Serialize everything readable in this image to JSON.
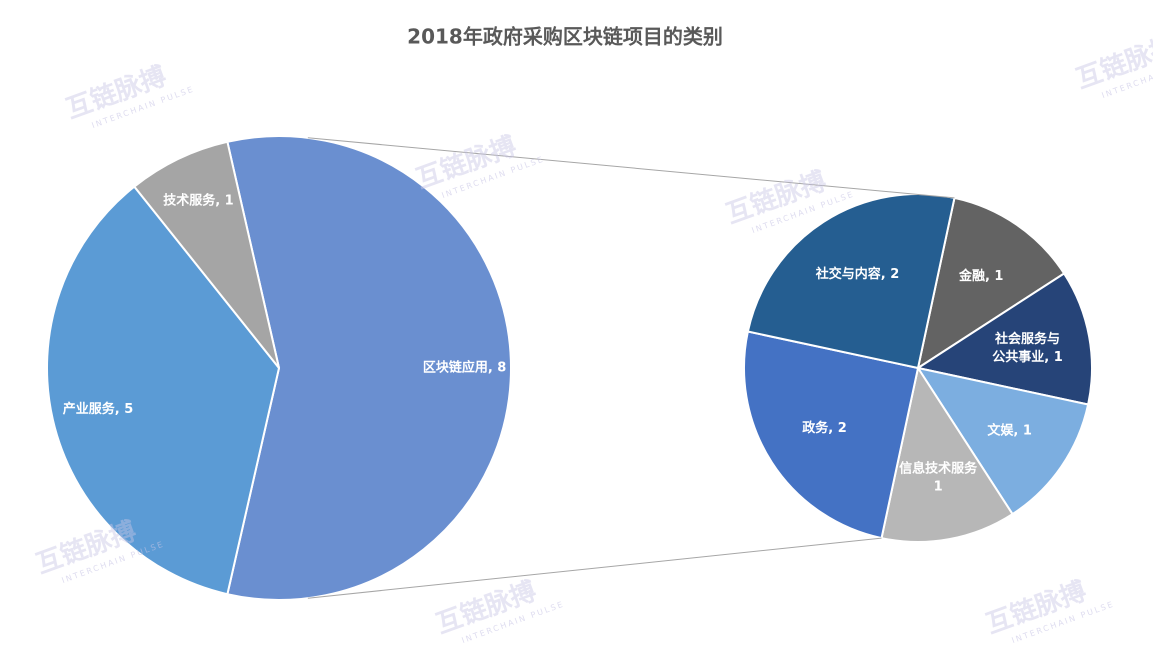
{
  "chart_data": {
    "type": "pie_of_pie",
    "title": "2018年政府采购区块链项目的类别",
    "categories": [
      "区块链应用",
      "产业服务",
      "技术服务"
    ],
    "values": [
      8,
      5,
      1
    ],
    "colors": [
      "#6a8fd0",
      "#5b9bd5",
      "#a5a5a5"
    ],
    "value_labels": [
      "区块链应用, 8",
      "产业服务, 5",
      "技术服务, 1"
    ],
    "sub": {
      "categories": [
        "金融",
        "社会服务与公共事业",
        "文娱",
        "信息技术服务",
        "政务",
        "社交与内容"
      ],
      "values": [
        1,
        1,
        1,
        1,
        2,
        2
      ],
      "colors": [
        "#636363",
        "#264478",
        "#7caee0",
        "#b7b7b7",
        "#4472c4",
        "#255e91"
      ],
      "value_labels": [
        "金融, 1",
        "社会服务与\n公共事业, 1",
        "文娱, 1",
        "信息技术服务\n1",
        "政务, 2",
        "社交与内容, 2"
      ]
    }
  },
  "watermark": {
    "text": "互链脉搏",
    "subtext": "INTERCHAIN PULSE"
  }
}
